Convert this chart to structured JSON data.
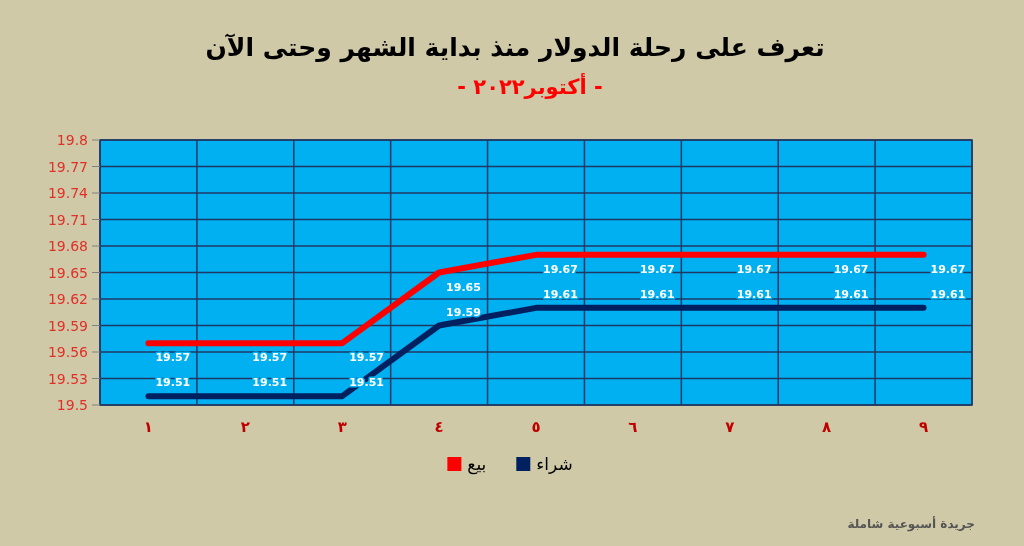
{
  "chart_data": {
    "type": "line",
    "title": "تعرف على رحلة الدولار منذ بداية الشهر وحتى الآن",
    "subtitle": "- أكتوبر٢٠٢٢ -",
    "categories": [
      "١",
      "٢",
      "٣",
      "٤",
      "٥",
      "٦",
      "٧",
      "٨",
      "٩"
    ],
    "series": [
      {
        "name": "بيع",
        "color": "#ff0000",
        "values": [
          19.57,
          19.57,
          19.57,
          19.65,
          19.67,
          19.67,
          19.67,
          19.67,
          19.67
        ]
      },
      {
        "name": "شراء",
        "color": "#002060",
        "values": [
          19.51,
          19.51,
          19.51,
          19.59,
          19.61,
          19.61,
          19.61,
          19.61,
          19.61
        ]
      }
    ],
    "ylim": [
      19.5,
      19.8
    ],
    "yticks": [
      19.5,
      19.53,
      19.56,
      19.59,
      19.62,
      19.65,
      19.68,
      19.71,
      19.74,
      19.77,
      19.8
    ],
    "grid": true,
    "legend": "bottom",
    "data_labels": true,
    "annotations": [
      "جريدة أسبوعية شاملة"
    ]
  }
}
